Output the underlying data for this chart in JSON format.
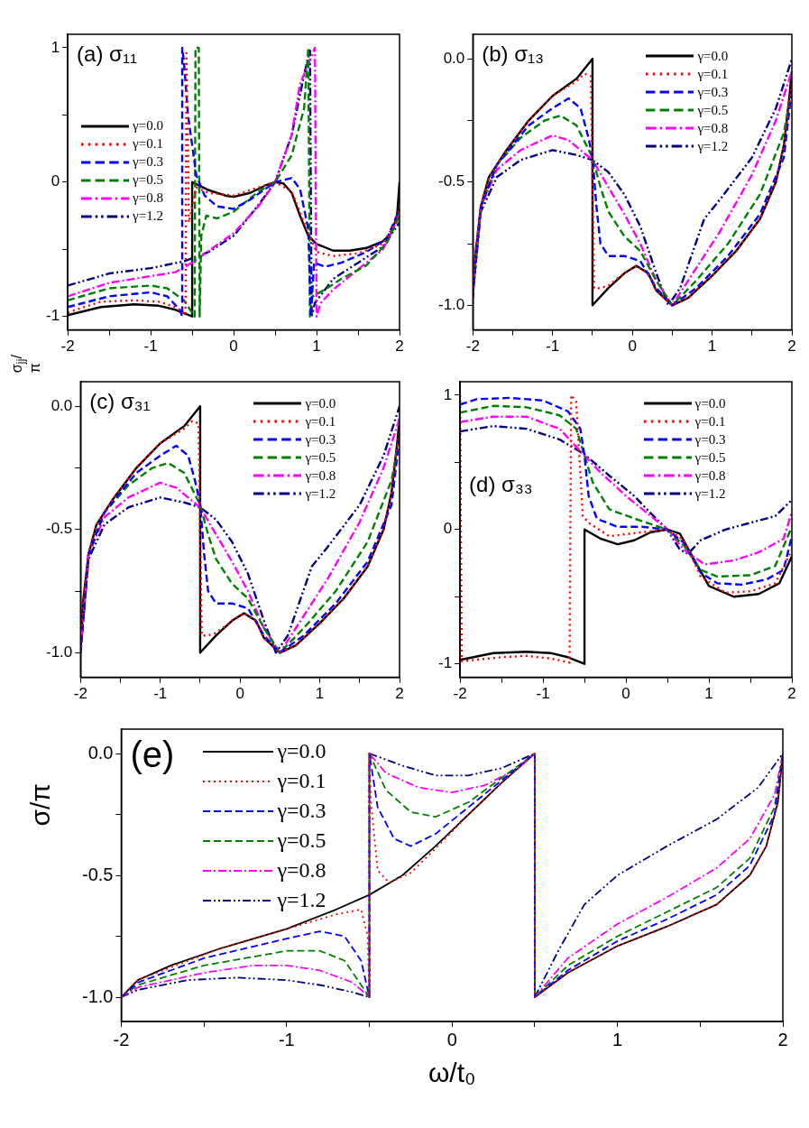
{
  "chart_data": [
    {
      "type": "line",
      "title": "(a) σ₁₁",
      "ylabel": "σ$_{jj}$/π",
      "legend": "left",
      "marker": "none",
      "xlim": [
        -2,
        2
      ],
      "ylim": [
        -1.1,
        1.1
      ],
      "xticks": [
        -2,
        {
          "value": -1.5,
          "label": null
        },
        -1,
        {
          "value": -0.5,
          "label": null
        },
        0,
        {
          "value": 0.5,
          "label": null
        },
        1,
        {
          "value": 1.5,
          "label": null
        },
        2
      ],
      "yticks": [
        -1,
        {
          "value": -0.5,
          "label": null
        },
        0,
        {
          "value": 0.5,
          "label": null
        },
        1
      ],
      "series": [
        {
          "name": "γ=0.0",
          "color": "#000000",
          "line_style": "solid",
          "x": [
            -2,
            -1.6,
            -1.2,
            -0.9,
            -0.7,
            -0.5,
            -0.5,
            -0.3,
            -0.1,
            0,
            0.2,
            0.4,
            0.5,
            0.6,
            0.7,
            0.8,
            0.9,
            1.0,
            1.2,
            1.4,
            1.6,
            1.8,
            1.9,
            1.97,
            2
          ],
          "values": [
            -0.99,
            -0.93,
            -0.91,
            -0.92,
            -0.95,
            -1,
            0,
            -0.06,
            -0.1,
            -0.11,
            -0.08,
            -0.02,
            0,
            -0.01,
            -0.08,
            -0.25,
            -0.4,
            -0.46,
            -0.51,
            -0.51,
            -0.49,
            -0.44,
            -0.38,
            -0.25,
            0
          ]
        },
        {
          "name": "γ=0.1",
          "color": "#ff0000",
          "line_style": "dotted",
          "x": [
            -2,
            -1.6,
            -1.2,
            -0.9,
            -0.7,
            -0.58,
            -0.57,
            -0.55,
            -0.54,
            -0.45,
            -0.3,
            0,
            0.3,
            0.5,
            0.7,
            0.9,
            1.0,
            1.2,
            1.5,
            1.8,
            1.95,
            2
          ],
          "values": [
            -0.97,
            -0.89,
            -0.88,
            -0.89,
            -0.93,
            -0.99,
            0.96,
            0.3,
            -0.3,
            -0.04,
            -0.08,
            -0.1,
            -0.04,
            0,
            -0.07,
            -0.38,
            -0.52,
            -0.55,
            -0.53,
            -0.46,
            -0.3,
            -0.2
          ]
        },
        {
          "name": "γ=0.3",
          "color": "#0000ff",
          "line_style": "dashed",
          "x": [
            -2,
            -1.5,
            -1,
            -0.8,
            -0.65,
            -0.62,
            -0.62,
            -0.6,
            -0.55,
            -0.45,
            -0.35,
            -0.2,
            0,
            0.2,
            0.5,
            0.7,
            0.8,
            0.9,
            0.93,
            0.97,
            1.1,
            1.3,
            1.6,
            1.85,
            2
          ],
          "values": [
            -0.93,
            -0.85,
            -0.82,
            -0.85,
            -0.95,
            -1,
            1,
            0.9,
            0.5,
            0.05,
            -0.1,
            -0.18,
            -0.2,
            -0.13,
            0,
            0.03,
            -0.05,
            -0.35,
            -1,
            -0.6,
            -0.63,
            -0.6,
            -0.52,
            -0.42,
            -0.2
          ]
        },
        {
          "name": "γ=0.5",
          "color": "#008000",
          "line_style": "dashed",
          "x": [
            -2,
            -1.5,
            -1,
            -0.8,
            -0.6,
            -0.47,
            -0.46,
            -0.42,
            -0.41,
            -0.39,
            -0.33,
            -0.2,
            0,
            0.3,
            0.5,
            0.7,
            0.85,
            0.9,
            0.92,
            0.95,
            1.1,
            1.3,
            1.6,
            1.85,
            2
          ],
          "values": [
            -0.88,
            -0.79,
            -0.77,
            -0.79,
            -0.88,
            -1,
            1,
            1,
            -1,
            -0.4,
            -0.25,
            -0.27,
            -0.22,
            -0.07,
            0,
            0.2,
            0.55,
            1,
            -1,
            -0.85,
            -0.8,
            -0.72,
            -0.62,
            -0.45,
            -0.25
          ]
        },
        {
          "name": "γ=0.8",
          "color": "#ff00ff",
          "line_style": "dashdot",
          "x": [
            -2,
            -1.5,
            -1,
            -0.7,
            -0.5,
            0,
            0.3,
            0.5,
            0.7,
            0.8,
            0.95,
            0.98,
            1.0,
            1.05,
            1.2,
            1.5,
            1.8,
            2
          ],
          "values": [
            -0.85,
            -0.75,
            -0.7,
            -0.67,
            -0.6,
            -0.38,
            -0.18,
            0,
            0.35,
            0.73,
            0.95,
            1,
            -1,
            -0.9,
            -0.8,
            -0.65,
            -0.5,
            -0.25
          ]
        },
        {
          "name": "γ=1.2",
          "color": "#000080",
          "line_style": "dashdotdot",
          "x": [
            -2,
            -1.5,
            -1,
            -0.6,
            -0.3,
            0,
            0.3,
            0.5,
            0.7,
            0.85,
            0.92,
            0.94,
            0.98,
            1.2,
            1.5,
            1.8,
            2
          ],
          "values": [
            -0.77,
            -0.68,
            -0.64,
            -0.59,
            -0.52,
            -0.4,
            -0.17,
            0,
            0.35,
            0.8,
            0.98,
            -1,
            -0.9,
            -0.72,
            -0.6,
            -0.48,
            -0.3
          ]
        }
      ]
    },
    {
      "type": "line",
      "title": "(b) σ₁₃",
      "legend": "top right",
      "marker": "none",
      "xlim": [
        -2,
        2
      ],
      "ylim": [
        -1.1,
        0.1
      ],
      "xticks": [
        -2,
        {
          "value": -1.5,
          "label": null
        },
        -1,
        {
          "value": -0.5,
          "label": null
        },
        0,
        {
          "value": 0.5,
          "label": null
        },
        1,
        {
          "value": 1.5,
          "label": null
        },
        2
      ],
      "yticks": [
        {
          "value": -1,
          "label": "-1.0"
        },
        {
          "value": -0.75,
          "label": null
        },
        {
          "value": -0.5,
          "label": "-0.5"
        },
        {
          "value": -0.25,
          "label": null
        },
        {
          "value": 0,
          "label": "0.0"
        }
      ],
      "series": [
        {
          "name": "γ=0.0",
          "color": "#000000",
          "line_style": "solid",
          "x": [
            -2,
            -1.97,
            -1.9,
            -1.8,
            -1.6,
            -1.3,
            -1,
            -0.7,
            -0.5,
            -0.5,
            -0.3,
            -0.1,
            0.05,
            0.2,
            0.3,
            0.5,
            0.7,
            1,
            1.3,
            1.6,
            1.8,
            1.9,
            1.97,
            2
          ],
          "values": [
            -0.97,
            -0.8,
            -0.6,
            -0.48,
            -0.38,
            -0.25,
            -0.15,
            -0.08,
            0,
            -1,
            -0.93,
            -0.87,
            -0.84,
            -0.87,
            -0.94,
            -1,
            -0.97,
            -0.88,
            -0.78,
            -0.65,
            -0.5,
            -0.35,
            -0.15,
            -0.05
          ]
        },
        {
          "name": "γ=0.1",
          "color": "#ff0000",
          "line_style": "dotted",
          "x": [
            -2,
            -1.97,
            -1.9,
            -1.8,
            -1.6,
            -1.3,
            -1,
            -0.7,
            -0.6,
            -0.52,
            -0.5,
            -0.48,
            -0.4,
            -0.3,
            -0.1,
            0.05,
            0.2,
            0.3,
            0.5,
            0.7,
            1,
            1.3,
            1.6,
            1.8,
            1.9,
            2
          ],
          "values": [
            -0.97,
            -0.8,
            -0.6,
            -0.48,
            -0.38,
            -0.25,
            -0.15,
            -0.09,
            -0.06,
            -0.07,
            -0.5,
            -0.93,
            -0.93,
            -0.92,
            -0.87,
            -0.84,
            -0.87,
            -0.94,
            -1,
            -0.97,
            -0.88,
            -0.78,
            -0.65,
            -0.5,
            -0.35,
            -0.1
          ]
        },
        {
          "name": "γ=0.3",
          "color": "#0000ff",
          "line_style": "dashed",
          "x": [
            -2,
            -1.9,
            -1.7,
            -1.3,
            -1,
            -0.8,
            -0.65,
            -0.55,
            -0.5,
            -0.45,
            -0.4,
            -0.3,
            -0.1,
            0.1,
            0.3,
            0.5,
            0.8,
            1.2,
            1.6,
            1.9,
            2
          ],
          "values": [
            -0.96,
            -0.6,
            -0.43,
            -0.27,
            -0.2,
            -0.16,
            -0.2,
            -0.32,
            -0.4,
            -0.6,
            -0.75,
            -0.8,
            -0.8,
            -0.82,
            -0.93,
            -1,
            -0.93,
            -0.8,
            -0.63,
            -0.4,
            -0.12
          ]
        },
        {
          "name": "γ=0.5",
          "color": "#008000",
          "line_style": "dashed",
          "x": [
            -2,
            -1.9,
            -1.7,
            -1.4,
            -1.1,
            -0.9,
            -0.7,
            -0.5,
            -0.4,
            -0.3,
            -0.1,
            0.1,
            0.3,
            0.5,
            0.8,
            1.2,
            1.6,
            1.9,
            2
          ],
          "values": [
            -0.95,
            -0.6,
            -0.43,
            -0.32,
            -0.25,
            -0.23,
            -0.27,
            -0.4,
            -0.52,
            -0.62,
            -0.72,
            -0.78,
            -0.9,
            -1,
            -0.9,
            -0.75,
            -0.55,
            -0.3,
            -0.12
          ]
        },
        {
          "name": "γ=0.8",
          "color": "#ff00ff",
          "line_style": "dashdot",
          "x": [
            -2,
            -1.9,
            -1.7,
            -1.4,
            -1,
            -0.8,
            -0.5,
            -0.3,
            -0.1,
            0.1,
            0.3,
            0.5,
            0.7,
            1.1,
            1.5,
            1.8,
            2
          ],
          "values": [
            -0.95,
            -0.6,
            -0.45,
            -0.37,
            -0.31,
            -0.33,
            -0.41,
            -0.52,
            -0.63,
            -0.75,
            -0.9,
            -1,
            -0.9,
            -0.7,
            -0.47,
            -0.25,
            -0.05
          ]
        },
        {
          "name": "γ=1.2",
          "color": "#000080",
          "line_style": "dashdotdot",
          "x": [
            -2,
            -1.9,
            -1.7,
            -1.4,
            -1,
            -0.7,
            -0.5,
            -0.3,
            -0.1,
            0.1,
            0.3,
            0.45,
            0.6,
            0.9,
            1.1,
            1.5,
            1.8,
            2
          ],
          "values": [
            -0.95,
            -0.62,
            -0.48,
            -0.41,
            -0.37,
            -0.39,
            -0.41,
            -0.46,
            -0.55,
            -0.68,
            -0.87,
            -1,
            -0.93,
            -0.65,
            -0.57,
            -0.4,
            -0.2,
            0
          ]
        }
      ]
    },
    {
      "type": "line",
      "title": "(c) σ₃₁",
      "legend": "top right",
      "marker": "none",
      "xlim": [
        -2,
        2
      ],
      "ylim": [
        -1.1,
        0.1
      ],
      "xticks": [
        -2,
        {
          "value": -1.5,
          "label": null
        },
        -1,
        {
          "value": -0.5,
          "label": null
        },
        0,
        {
          "value": 0.5,
          "label": null
        },
        1,
        {
          "value": 1.5,
          "label": null
        },
        2
      ],
      "yticks": [
        {
          "value": -1,
          "label": "-1.0"
        },
        {
          "value": -0.75,
          "label": null
        },
        {
          "value": -0.5,
          "label": "-0.5"
        },
        {
          "value": -0.25,
          "label": null
        },
        {
          "value": 0,
          "label": "0.0"
        }
      ],
      "series": [
        {
          "name": "γ=0.0",
          "color": "#000000",
          "line_style": "solid",
          "x": [
            -2,
            -1.97,
            -1.9,
            -1.8,
            -1.6,
            -1.3,
            -1,
            -0.7,
            -0.5,
            -0.5,
            -0.3,
            -0.1,
            0.05,
            0.2,
            0.3,
            0.5,
            0.7,
            1,
            1.3,
            1.6,
            1.8,
            1.9,
            1.97,
            2
          ],
          "values": [
            -1,
            -0.8,
            -0.6,
            -0.48,
            -0.38,
            -0.25,
            -0.15,
            -0.08,
            0,
            -1,
            -0.93,
            -0.87,
            -0.84,
            -0.87,
            -0.94,
            -1,
            -0.97,
            -0.88,
            -0.78,
            -0.65,
            -0.5,
            -0.35,
            -0.15,
            -0.05
          ]
        },
        {
          "name": "γ=0.1",
          "color": "#ff0000",
          "line_style": "dotted",
          "x": [
            -2,
            -1.97,
            -1.9,
            -1.8,
            -1.6,
            -1.3,
            -1,
            -0.7,
            -0.6,
            -0.52,
            -0.5,
            -0.48,
            -0.4,
            -0.3,
            -0.1,
            0.05,
            0.2,
            0.3,
            0.5,
            0.7,
            1,
            1.3,
            1.6,
            1.8,
            1.9,
            2
          ],
          "values": [
            -1,
            -0.8,
            -0.6,
            -0.48,
            -0.38,
            -0.25,
            -0.15,
            -0.09,
            -0.06,
            -0.07,
            -0.5,
            -0.93,
            -0.93,
            -0.92,
            -0.87,
            -0.84,
            -0.87,
            -0.94,
            -1,
            -0.97,
            -0.88,
            -0.78,
            -0.65,
            -0.5,
            -0.35,
            -0.1
          ]
        },
        {
          "name": "γ=0.3",
          "color": "#0000ff",
          "line_style": "dashed",
          "x": [
            -2,
            -1.9,
            -1.7,
            -1.3,
            -1,
            -0.8,
            -0.65,
            -0.55,
            -0.5,
            -0.45,
            -0.4,
            -0.3,
            -0.1,
            0.1,
            0.3,
            0.5,
            0.8,
            1.2,
            1.6,
            1.9,
            2
          ],
          "values": [
            -1,
            -0.6,
            -0.43,
            -0.27,
            -0.2,
            -0.16,
            -0.2,
            -0.32,
            -0.4,
            -0.6,
            -0.75,
            -0.8,
            -0.8,
            -0.82,
            -0.93,
            -1,
            -0.93,
            -0.8,
            -0.63,
            -0.4,
            -0.12
          ]
        },
        {
          "name": "γ=0.5",
          "color": "#008000",
          "line_style": "dashed",
          "x": [
            -2,
            -1.9,
            -1.7,
            -1.4,
            -1.1,
            -0.9,
            -0.7,
            -0.5,
            -0.4,
            -0.3,
            -0.1,
            0.1,
            0.3,
            0.5,
            0.8,
            1.2,
            1.6,
            1.9,
            2
          ],
          "values": [
            -1,
            -0.6,
            -0.43,
            -0.32,
            -0.25,
            -0.23,
            -0.27,
            -0.4,
            -0.52,
            -0.62,
            -0.72,
            -0.78,
            -0.9,
            -1,
            -0.9,
            -0.75,
            -0.55,
            -0.3,
            -0.12
          ]
        },
        {
          "name": "γ=0.8",
          "color": "#ff00ff",
          "line_style": "dashdot",
          "x": [
            -2,
            -1.9,
            -1.7,
            -1.4,
            -1,
            -0.8,
            -0.5,
            -0.3,
            -0.1,
            0.1,
            0.3,
            0.5,
            0.7,
            1.1,
            1.5,
            1.8,
            2
          ],
          "values": [
            -1,
            -0.6,
            -0.45,
            -0.37,
            -0.31,
            -0.33,
            -0.41,
            -0.52,
            -0.63,
            -0.75,
            -0.9,
            -1,
            -0.9,
            -0.7,
            -0.47,
            -0.25,
            -0.05
          ]
        },
        {
          "name": "γ=1.2",
          "color": "#000080",
          "line_style": "dashdotdot",
          "x": [
            -2,
            -1.9,
            -1.7,
            -1.4,
            -1,
            -0.7,
            -0.5,
            -0.3,
            -0.1,
            0.1,
            0.3,
            0.45,
            0.6,
            0.9,
            1.1,
            1.5,
            1.8,
            2
          ],
          "values": [
            -1,
            -0.62,
            -0.48,
            -0.41,
            -0.37,
            -0.39,
            -0.41,
            -0.46,
            -0.55,
            -0.68,
            -0.87,
            -1,
            -0.93,
            -0.65,
            -0.57,
            -0.4,
            -0.2,
            0
          ]
        }
      ]
    },
    {
      "type": "line",
      "title": "(d) σ₃₃",
      "legend": "top right",
      "marker": "none",
      "xlim": [
        -2,
        2
      ],
      "ylim": [
        -1.1,
        1.1
      ],
      "xticks": [
        -2,
        {
          "value": -1.5,
          "label": null
        },
        -1,
        {
          "value": -0.5,
          "label": null
        },
        0,
        {
          "value": 0.5,
          "label": null
        },
        1,
        {
          "value": 1.5,
          "label": null
        },
        2
      ],
      "yticks": [
        -1,
        {
          "value": -0.5,
          "label": null
        },
        0,
        {
          "value": 0.5,
          "label": null
        },
        1
      ],
      "series": [
        {
          "name": "γ=0.0",
          "color": "#000000",
          "line_style": "solid",
          "x": [
            -2,
            -1.6,
            -1.2,
            -0.9,
            -0.7,
            -0.5,
            -0.5,
            -0.3,
            -0.1,
            0.1,
            0.3,
            0.5,
            0.65,
            0.8,
            1,
            1.3,
            1.6,
            1.85,
            2
          ],
          "values": [
            -0.97,
            -0.92,
            -0.91,
            -0.92,
            -0.95,
            -1,
            0,
            -0.07,
            -0.11,
            -0.08,
            -0.02,
            0,
            -0.03,
            -0.2,
            -0.42,
            -0.5,
            -0.48,
            -0.4,
            -0.2
          ]
        },
        {
          "name": "γ=0.1",
          "color": "#ff0000",
          "line_style": "dotted",
          "x": [
            -2,
            -1.98,
            -1.5,
            -1.2,
            -0.9,
            -0.68,
            -0.66,
            -0.6,
            -0.52,
            -0.45,
            -0.2,
            0.2,
            0.5,
            0.7,
            0.9,
            1.2,
            1.5,
            1.8,
            2
          ],
          "values": [
            1,
            -0.98,
            -0.95,
            -0.94,
            -0.96,
            -0.99,
            1,
            0.95,
            0.1,
            0.05,
            -0.05,
            -0.02,
            0,
            -0.08,
            -0.35,
            -0.47,
            -0.46,
            -0.4,
            -0.15
          ]
        },
        {
          "name": "γ=0.3",
          "color": "#0000ff",
          "line_style": "dashed",
          "x": [
            -2,
            -1.8,
            -1.4,
            -1,
            -0.7,
            -0.55,
            -0.5,
            -0.45,
            -0.35,
            -0.1,
            0.2,
            0.5,
            0.7,
            0.9,
            1.1,
            1.4,
            1.7,
            1.9,
            2
          ],
          "values": [
            0.93,
            0.97,
            0.98,
            0.96,
            0.88,
            0.75,
            0.55,
            0.25,
            0.08,
            0.02,
            0.02,
            0,
            -0.1,
            -0.32,
            -0.4,
            -0.41,
            -0.37,
            -0.3,
            -0.05
          ]
        },
        {
          "name": "γ=0.5",
          "color": "#008000",
          "line_style": "dashed",
          "x": [
            -2,
            -1.6,
            -1.2,
            -0.8,
            -0.6,
            -0.5,
            -0.4,
            -0.2,
            0.2,
            0.5,
            0.7,
            0.9,
            1.1,
            1.5,
            1.8,
            2
          ],
          "values": [
            0.87,
            0.92,
            0.91,
            0.85,
            0.75,
            0.55,
            0.35,
            0.15,
            0.06,
            0,
            -0.12,
            -0.3,
            -0.35,
            -0.34,
            -0.27,
            0.02
          ]
        },
        {
          "name": "γ=0.8",
          "color": "#ff00ff",
          "line_style": "dashdot",
          "x": [
            -2,
            -1.6,
            -1.2,
            -0.8,
            -0.5,
            -0.3,
            0,
            0.3,
            0.5,
            0.7,
            0.95,
            1.3,
            1.6,
            1.9,
            2
          ],
          "values": [
            0.8,
            0.84,
            0.84,
            0.75,
            0.55,
            0.42,
            0.25,
            0.1,
            0,
            -0.15,
            -0.26,
            -0.23,
            -0.17,
            -0.07,
            0.13
          ]
        },
        {
          "name": "γ=1.2",
          "color": "#000080",
          "line_style": "dashdotdot",
          "x": [
            -2,
            -1.6,
            -1.2,
            -0.8,
            -0.5,
            -0.2,
            0.1,
            0.3,
            0.5,
            0.65,
            0.75,
            0.9,
            1.2,
            1.5,
            1.8,
            2
          ],
          "values": [
            0.73,
            0.77,
            0.75,
            0.67,
            0.56,
            0.4,
            0.25,
            0.12,
            0,
            -0.15,
            -0.18,
            -0.08,
            0,
            0.05,
            0.1,
            0.22
          ]
        }
      ]
    },
    {
      "type": "line",
      "title": "(e)",
      "xlabel": "ω/t₀",
      "ylabel": "σ/π",
      "legend": "top left",
      "marker": "none",
      "xlim": [
        -2,
        2
      ],
      "ylim": [
        -1.1,
        0.1
      ],
      "xticks": [
        -2,
        {
          "value": -1.5,
          "label": null
        },
        -1,
        {
          "value": -0.5,
          "label": null
        },
        0,
        {
          "value": 0.5,
          "label": null
        },
        1,
        {
          "value": 1.5,
          "label": null
        },
        2
      ],
      "yticks": [
        {
          "value": -1,
          "label": "-1.0"
        },
        {
          "value": -0.75,
          "label": null
        },
        {
          "value": -0.5,
          "label": "-0.5"
        },
        {
          "value": -0.25,
          "label": null
        },
        {
          "value": 0,
          "label": "0.0"
        }
      ],
      "series": [
        {
          "name": "γ=0.0",
          "color": "#000000",
          "line_style": "solid",
          "x": [
            -2,
            -1.9,
            -1.7,
            -1.4,
            -1,
            -0.7,
            -0.5,
            -0.3,
            -0.1,
            0.1,
            0.3,
            0.5,
            0.5,
            0.7,
            1,
            1.3,
            1.6,
            1.8,
            1.9,
            1.97,
            2
          ],
          "values": [
            -1,
            -0.93,
            -0.87,
            -0.8,
            -0.72,
            -0.64,
            -0.58,
            -0.5,
            -0.38,
            -0.25,
            -0.12,
            0,
            -1,
            -0.9,
            -0.79,
            -0.71,
            -0.62,
            -0.5,
            -0.38,
            -0.2,
            0
          ]
        },
        {
          "name": "γ=0.1",
          "color": "#ff0000",
          "line_style": "dotted",
          "x": [
            -2,
            -1.9,
            -1.4,
            -1,
            -0.7,
            -0.55,
            -0.51,
            -0.5,
            -0.5,
            -0.49,
            -0.45,
            -0.38,
            -0.25,
            -0.1,
            0.1,
            0.3,
            0.5,
            0.5,
            0.7,
            1,
            1.3,
            1.6,
            1.8,
            1.9,
            1.97,
            2
          ],
          "values": [
            -1,
            -0.93,
            -0.8,
            -0.72,
            -0.66,
            -0.64,
            -0.75,
            -1,
            0,
            -0.2,
            -0.48,
            -0.53,
            -0.49,
            -0.39,
            -0.25,
            -0.12,
            0,
            -1,
            -0.9,
            -0.79,
            -0.71,
            -0.62,
            -0.5,
            -0.38,
            -0.2,
            0
          ]
        },
        {
          "name": "γ=0.3",
          "color": "#0000ff",
          "line_style": "dashed",
          "x": [
            -2,
            -1.9,
            -1.5,
            -1,
            -0.8,
            -0.65,
            -0.55,
            -0.5,
            -0.5,
            -0.45,
            -0.35,
            -0.25,
            -0.1,
            0.1,
            0.3,
            0.5,
            0.5,
            0.7,
            1,
            1.3,
            1.6,
            1.8,
            1.95,
            2
          ],
          "values": [
            -1,
            -0.94,
            -0.84,
            -0.76,
            -0.73,
            -0.75,
            -0.85,
            -1,
            0,
            -0.22,
            -0.35,
            -0.38,
            -0.33,
            -0.22,
            -0.11,
            0,
            -1,
            -0.89,
            -0.77,
            -0.68,
            -0.58,
            -0.46,
            -0.25,
            0
          ]
        },
        {
          "name": "γ=0.5",
          "color": "#008000",
          "line_style": "dashed",
          "x": [
            -2,
            -1.9,
            -1.5,
            -1,
            -0.8,
            -0.65,
            -0.5,
            -0.5,
            -0.4,
            -0.25,
            -0.1,
            0.1,
            0.3,
            0.5,
            0.5,
            0.7,
            1,
            1.3,
            1.6,
            1.8,
            1.95,
            2
          ],
          "values": [
            -1,
            -0.95,
            -0.87,
            -0.81,
            -0.81,
            -0.85,
            -1,
            0,
            -0.15,
            -0.24,
            -0.26,
            -0.2,
            -0.1,
            0,
            -1,
            -0.87,
            -0.75,
            -0.65,
            -0.55,
            -0.43,
            -0.22,
            0
          ]
        },
        {
          "name": "γ=0.8",
          "color": "#ff00ff",
          "line_style": "dashdot",
          "x": [
            -2,
            -1.9,
            -1.5,
            -1.2,
            -1,
            -0.8,
            -0.6,
            -0.5,
            -0.5,
            -0.4,
            -0.2,
            0,
            0.2,
            0.4,
            0.5,
            0.5,
            0.7,
            1,
            1.3,
            1.6,
            1.8,
            1.95,
            2
          ],
          "values": [
            -1,
            -0.96,
            -0.9,
            -0.87,
            -0.87,
            -0.89,
            -0.94,
            -1,
            0,
            -0.08,
            -0.14,
            -0.16,
            -0.13,
            -0.06,
            0,
            -1,
            -0.84,
            -0.7,
            -0.59,
            -0.47,
            -0.35,
            -0.17,
            0
          ]
        },
        {
          "name": "γ=1.2",
          "color": "#000080",
          "line_style": "dashdotdot",
          "x": [
            -2,
            -1.9,
            -1.6,
            -1.3,
            -1,
            -0.8,
            -0.6,
            -0.5,
            -0.5,
            -0.3,
            -0.1,
            0.1,
            0.3,
            0.5,
            0.5,
            0.65,
            0.8,
            1,
            1.3,
            1.6,
            1.85,
            2
          ],
          "values": [
            -1,
            -0.97,
            -0.93,
            -0.92,
            -0.93,
            -0.95,
            -0.98,
            -1,
            0,
            -0.05,
            -0.09,
            -0.09,
            -0.06,
            0,
            -1,
            -0.8,
            -0.62,
            -0.5,
            -0.38,
            -0.27,
            -0.14,
            0
          ]
        }
      ]
    }
  ]
}
